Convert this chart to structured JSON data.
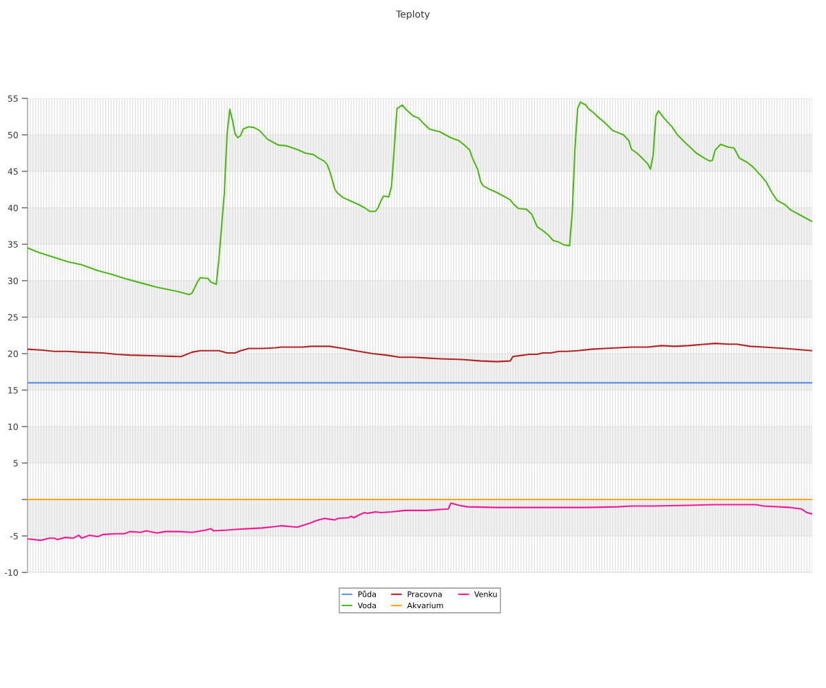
{
  "chart_data": {
    "type": "line",
    "title": "Teploty",
    "categories": [
      null,
      null,
      null,
      null,
      null,
      null,
      null,
      null,
      null,
      null,
      null,
      null,
      null,
      null,
      null,
      null,
      null,
      null,
      null,
      null,
      null,
      null,
      null,
      null,
      null,
      null,
      null,
      null,
      null,
      null,
      null,
      null,
      null,
      null,
      null,
      null,
      null,
      null,
      null,
      null,
      null,
      null,
      null,
      null,
      null,
      null,
      null,
      null,
      null,
      null,
      null,
      null,
      null,
      null,
      null,
      null,
      null,
      null,
      null,
      null,
      null,
      null,
      null,
      null,
      null,
      null,
      null,
      null,
      null,
      null,
      null,
      null,
      null,
      null,
      null,
      null,
      null,
      null,
      null,
      null,
      null,
      null,
      null,
      null,
      null,
      null,
      null,
      null,
      null,
      null,
      null,
      null,
      null,
      null,
      null,
      null,
      null,
      null,
      null,
      null,
      null,
      null,
      null,
      null,
      null,
      null,
      null,
      null,
      null,
      null,
      null,
      null,
      null,
      null,
      null,
      null,
      null,
      null,
      null,
      null,
      null,
      null,
      null,
      null,
      null,
      null,
      null,
      null,
      null,
      null,
      null,
      null,
      null,
      null,
      null,
      null,
      null,
      null,
      null,
      null,
      null,
      null,
      null,
      null,
      null,
      null,
      null,
      null,
      null,
      null,
      null,
      null,
      null,
      null,
      null,
      null,
      null,
      null,
      null,
      null,
      null,
      null,
      null,
      null,
      null,
      null,
      null,
      null,
      null,
      null,
      null,
      null,
      null,
      null,
      null,
      null,
      null,
      null,
      null,
      null,
      null,
      null,
      null,
      null,
      null,
      null,
      null,
      null,
      null,
      null,
      null,
      null,
      null,
      null,
      null,
      null,
      null,
      null,
      null,
      null,
      null,
      null,
      null,
      null,
      null,
      null,
      null,
      null,
      null,
      null,
      null,
      null,
      null,
      null,
      null,
      null,
      null,
      null,
      null,
      null,
      null,
      null,
      null,
      null,
      null,
      null,
      null,
      null,
      null,
      null,
      null,
      null,
      null,
      null,
      null,
      null,
      null,
      null,
      null,
      null,
      null,
      null,
      null,
      null,
      null,
      null,
      null,
      null,
      null,
      null,
      null,
      null,
      null,
      null,
      null,
      null,
      null,
      null,
      null,
      null,
      null,
      null,
      null,
      null,
      null,
      null,
      null,
      null,
      null,
      null,
      null,
      null,
      null,
      null,
      null,
      null,
      null,
      null,
      null,
      null,
      null,
      null,
      null,
      null,
      null,
      null,
      null,
      null,
      null,
      null,
      null,
      null
    ],
    "ylim": [
      -10,
      55
    ],
    "yticks": [
      -10,
      -5,
      {
        "value": 0,
        "label": null
      },
      5,
      10,
      15,
      20,
      25,
      30,
      35,
      40,
      45,
      50,
      55
    ],
    "grid": true,
    "legend": "bottom",
    "marker": "none",
    "line_style": "solid",
    "bands": [
      {
        "axis": "y",
        "from": -5,
        "to": 0,
        "color": "#f2f2f2"
      },
      {
        "axis": "y",
        "from": 5,
        "to": 10,
        "color": "#f2f2f2"
      },
      {
        "axis": "y",
        "from": 15,
        "to": 20,
        "color": "#f2f2f2"
      },
      {
        "axis": "y",
        "from": 25,
        "to": 30,
        "color": "#f2f2f2"
      },
      {
        "axis": "y",
        "from": 35,
        "to": 40,
        "color": "#f2f2f2"
      },
      {
        "axis": "y",
        "from": 45,
        "to": 50,
        "color": "#f2f2f2"
      }
    ],
    "series": [
      {
        "name": "Půda",
        "color": "#5b8fe8",
        "values": [
          16,
          null,
          null,
          null,
          null,
          null,
          null,
          null,
          null,
          null,
          null,
          null,
          null,
          null,
          null,
          null,
          null,
          null,
          null,
          null,
          null,
          null,
          null,
          null,
          null,
          null,
          null,
          null,
          null,
          null,
          null,
          null,
          null,
          null,
          null,
          null,
          null,
          null,
          null,
          null,
          null,
          null,
          null,
          null,
          null,
          null,
          null,
          null,
          null,
          null,
          null,
          null,
          null,
          null,
          null,
          null,
          null,
          null,
          null,
          null,
          null,
          null,
          null,
          null,
          null,
          null,
          null,
          null,
          null,
          null,
          null,
          null,
          null,
          null,
          null,
          null,
          null,
          null,
          null,
          null,
          null,
          null,
          null,
          null,
          null,
          null,
          null,
          null,
          null,
          null,
          null,
          null,
          null,
          null,
          null,
          null,
          null,
          null,
          null,
          null,
          null,
          null,
          null,
          null,
          null,
          null,
          null,
          null,
          null,
          null,
          null,
          null,
          null,
          null,
          null,
          null,
          null,
          null,
          null,
          null,
          null,
          null,
          null,
          null,
          null,
          null,
          null,
          null,
          null,
          null,
          null,
          null,
          null,
          null,
          null,
          null,
          null,
          null,
          null,
          null,
          null,
          null,
          null,
          null,
          null,
          null,
          null,
          null,
          null,
          null,
          null,
          null,
          null,
          null,
          null,
          null,
          null,
          null,
          null,
          null,
          null,
          null,
          null,
          null,
          null,
          null,
          null,
          null,
          null,
          null,
          null,
          null,
          null,
          null,
          null,
          null,
          null,
          null,
          null,
          null,
          null,
          null,
          null,
          null,
          null,
          null,
          null,
          null,
          null,
          null,
          null,
          null,
          null,
          null,
          null,
          null,
          null,
          null,
          null,
          null,
          null,
          null,
          null,
          null,
          null,
          null,
          null,
          null,
          null,
          null,
          null,
          null,
          null,
          null,
          null,
          null,
          null,
          null,
          null,
          null,
          null,
          null,
          null,
          null,
          null,
          null,
          null,
          null,
          null,
          null,
          null,
          null,
          null,
          null,
          null,
          null,
          null,
          null,
          null,
          null,
          null,
          null,
          null,
          null,
          null,
          null,
          null,
          null,
          null,
          null,
          null,
          null,
          null,
          null,
          null,
          null,
          null,
          null,
          null,
          null,
          null,
          null,
          null,
          null,
          null,
          null,
          null,
          null,
          null,
          null,
          null,
          null,
          null,
          null,
          null,
          null,
          null,
          null,
          null,
          null,
          null,
          null,
          null,
          null,
          null,
          null,
          null,
          null,
          null,
          null,
          null,
          16
        ]
      },
      {
        "name": "Voda",
        "color": "#4cb814",
        "values": [
          34.5,
          null,
          null,
          null,
          33.9,
          null,
          null,
          null,
          null,
          33.3,
          null,
          null,
          null,
          null,
          null,
          32.6,
          null,
          null,
          null,
          null,
          32.2,
          null,
          null,
          null,
          null,
          null,
          31.4,
          null,
          null,
          null,
          null,
          30.9,
          null,
          null,
          null,
          null,
          30.3,
          null,
          null,
          null,
          null,
          29.8,
          null,
          null,
          null,
          null,
          null,
          null,
          29.1,
          null,
          null,
          null,
          null,
          null,
          null,
          null,
          28.5,
          null,
          null,
          null,
          28.1,
          28.3,
          null,
          29.8,
          30.4,
          null,
          null,
          30.3,
          29.8,
          null,
          29.5,
          33.1,
          null,
          42.1,
          50.1,
          53.5,
          52.0,
          50.1,
          49.6,
          49.9,
          50.8,
          null,
          51.1,
          null,
          51.0,
          null,
          50.6,
          null,
          49.8,
          49.4,
          null,
          null,
          48.8,
          48.6,
          null,
          null,
          48.5,
          null,
          null,
          null,
          48.0,
          null,
          null,
          47.5,
          null,
          null,
          47.3,
          null,
          46.8,
          null,
          46.4,
          46.0,
          45.1,
          43.8,
          42.5,
          42.0,
          null,
          41.4,
          null,
          null,
          40.9,
          null,
          null,
          40.4,
          null,
          40.0,
          null,
          39.5,
          null,
          39.5,
          40.0,
          40.9,
          41.6,
          null,
          41.5,
          43.0,
          48.2,
          53.6,
          null,
          54.1,
          53.6,
          null,
          null,
          52.6,
          null,
          52.3,
          null,
          51.5,
          null,
          50.8,
          null,
          null,
          null,
          50.4,
          null,
          null,
          null,
          49.6,
          null,
          null,
          49.2,
          null,
          48.6,
          null,
          47.9,
          46.8,
          null,
          45.2,
          43.6,
          43.0,
          null,
          42.6,
          null,
          null,
          42.1,
          null,
          null,
          null,
          null,
          41.1,
          40.6,
          null,
          39.9,
          null,
          null,
          39.8,
          null,
          39.1,
          null,
          37.4,
          null,
          36.9,
          null,
          36.3,
          null,
          35.5,
          null,
          35.3,
          null,
          34.9,
          null,
          34.8,
          39.3,
          48.1,
          53.6,
          54.5,
          null,
          54.1,
          53.6,
          null,
          53.0,
          null,
          52.3,
          null,
          51.7,
          null,
          null,
          50.6,
          null,
          null,
          null,
          50.0,
          null,
          49.2,
          48.0,
          null,
          47.5,
          null,
          46.8,
          null,
          46.0,
          45.3,
          47.2,
          52.6,
          53.3,
          null,
          52.3,
          null,
          null,
          51.1,
          null,
          50.0,
          null,
          null,
          48.9,
          null,
          48.2,
          null,
          47.5,
          null,
          null,
          46.8,
          null,
          46.4,
          46.5,
          47.9,
          null,
          48.7,
          null,
          null,
          48.3,
          null,
          48.2,
          null,
          46.8,
          null,
          null,
          46.2,
          null,
          45.6,
          null,
          null,
          44.4,
          null,
          43.5,
          null,
          42.1,
          null,
          41.0,
          null,
          null,
          40.4,
          null,
          39.7,
          null,
          null,
          39.1,
          null,
          38.7,
          null,
          null,
          38.1
        ]
      },
      {
        "name": "Pracovna",
        "color": "#b22222",
        "values": [
          20.6,
          null,
          null,
          null,
          null,
          20.5,
          null,
          null,
          null,
          null,
          20.3,
          null,
          null,
          null,
          null,
          20.3,
          null,
          null,
          null,
          null,
          20.2,
          null,
          null,
          null,
          null,
          null,
          null,
          null,
          20.1,
          null,
          null,
          null,
          null,
          19.9,
          null,
          null,
          null,
          null,
          19.8,
          null,
          null,
          null,
          null,
          null,
          null,
          null,
          null,
          null,
          19.7,
          null,
          null,
          null,
          null,
          null,
          null,
          null,
          19.6,
          19.6,
          null,
          null,
          null,
          20.2,
          null,
          null,
          20.4,
          null,
          null,
          null,
          null,
          null,
          null,
          20.4,
          null,
          null,
          20.1,
          null,
          null,
          20.1,
          null,
          20.4,
          null,
          null,
          20.7,
          null,
          null,
          null,
          null,
          20.7,
          null,
          null,
          null,
          null,
          20.8,
          null,
          20.9,
          null,
          null,
          null,
          null,
          null,
          null,
          null,
          20.9,
          null,
          null,
          21.0,
          null,
          null,
          null,
          null,
          null,
          null,
          21.0,
          null,
          null,
          null,
          null,
          20.7,
          null,
          null,
          null,
          null,
          null,
          20.3,
          null,
          null,
          null,
          null,
          20.0,
          null,
          null,
          null,
          null,
          19.8,
          null,
          null,
          null,
          null,
          19.5,
          null,
          null,
          null,
          null,
          19.5,
          null,
          null,
          null,
          null,
          19.4,
          null,
          null,
          null,
          null,
          19.3,
          null,
          null,
          null,
          null,
          null,
          null,
          null,
          19.2,
          null,
          null,
          null,
          null,
          null,
          null,
          19.0,
          null,
          null,
          null,
          null,
          null,
          18.9,
          null,
          null,
          null,
          null,
          19.0,
          19.6,
          null,
          null,
          null,
          19.8,
          null,
          19.9,
          null,
          null,
          19.9,
          null,
          20.1,
          null,
          null,
          20.1,
          null,
          null,
          20.3,
          null,
          null,
          20.3,
          null,
          null,
          null,
          20.4,
          null,
          null,
          null,
          null,
          20.6,
          null,
          null,
          null,
          null,
          20.7,
          null,
          null,
          null,
          null,
          20.8,
          null,
          null,
          null,
          null,
          20.9,
          null,
          null,
          null,
          null,
          null,
          20.9,
          null,
          null,
          null,
          null,
          21.1,
          null,
          null,
          null,
          null,
          21.0,
          null,
          null,
          null,
          null,
          21.1,
          null,
          null,
          null,
          null,
          null,
          null,
          null,
          null,
          null,
          21.4,
          null,
          null,
          null,
          null,
          21.3,
          null,
          null,
          21.3,
          null,
          null,
          null,
          null,
          21.0,
          null,
          null,
          null,
          null,
          20.9,
          null,
          null,
          null,
          null,
          null,
          null,
          null,
          20.7,
          null,
          null,
          null,
          null,
          null,
          null,
          20.5,
          null,
          null,
          20.4
        ]
      },
      {
        "name": "Akvarium",
        "color": "#ffa500",
        "values": [
          0,
          null,
          null,
          null,
          null,
          null,
          null,
          null,
          null,
          null,
          null,
          null,
          null,
          null,
          null,
          null,
          null,
          null,
          null,
          null,
          null,
          null,
          null,
          null,
          null,
          null,
          null,
          null,
          null,
          null,
          null,
          null,
          null,
          null,
          null,
          null,
          null,
          null,
          null,
          null,
          null,
          null,
          null,
          null,
          null,
          null,
          null,
          null,
          null,
          null,
          null,
          null,
          null,
          null,
          null,
          null,
          null,
          null,
          null,
          null,
          null,
          null,
          null,
          null,
          null,
          null,
          null,
          null,
          null,
          null,
          null,
          null,
          null,
          null,
          null,
          null,
          null,
          null,
          null,
          null,
          null,
          null,
          null,
          null,
          null,
          null,
          null,
          null,
          null,
          null,
          null,
          null,
          null,
          null,
          null,
          null,
          null,
          null,
          null,
          null,
          null,
          null,
          null,
          null,
          null,
          null,
          null,
          null,
          null,
          null,
          null,
          null,
          null,
          null,
          null,
          null,
          null,
          null,
          null,
          null,
          null,
          null,
          null,
          null,
          null,
          null,
          null,
          null,
          null,
          null,
          null,
          null,
          null,
          null,
          null,
          null,
          null,
          null,
          null,
          null,
          null,
          null,
          null,
          null,
          null,
          null,
          null,
          null,
          null,
          null,
          null,
          null,
          null,
          null,
          null,
          null,
          null,
          null,
          null,
          null,
          null,
          null,
          null,
          null,
          null,
          null,
          null,
          null,
          null,
          null,
          null,
          null,
          null,
          null,
          null,
          null,
          null,
          null,
          null,
          null,
          null,
          null,
          null,
          null,
          null,
          null,
          null,
          null,
          null,
          null,
          null,
          null,
          null,
          null,
          null,
          null,
          null,
          null,
          null,
          null,
          null,
          null,
          null,
          null,
          null,
          null,
          null,
          null,
          null,
          null,
          null,
          null,
          null,
          null,
          null,
          null,
          null,
          null,
          null,
          null,
          null,
          null,
          null,
          null,
          null,
          null,
          null,
          null,
          null,
          null,
          null,
          null,
          null,
          null,
          null,
          null,
          null,
          null,
          null,
          null,
          null,
          null,
          null,
          null,
          null,
          null,
          null,
          null,
          null,
          null,
          null,
          null,
          null,
          null,
          null,
          null,
          null,
          null,
          null,
          null,
          null,
          null,
          null,
          null,
          null,
          null,
          null,
          null,
          null,
          null,
          null,
          null,
          null,
          null,
          null,
          null,
          null,
          null,
          null,
          null,
          null,
          null,
          null,
          null,
          null,
          null,
          null,
          null,
          null,
          null,
          null,
          0
        ]
      },
      {
        "name": "Venku",
        "color": "#ff1493",
        "values": [
          -5.4,
          null,
          null,
          null,
          null,
          -5.6,
          null,
          null,
          -5.3,
          null,
          -5.3,
          -5.5,
          null,
          null,
          -5.2,
          null,
          null,
          -5.3,
          null,
          -4.9,
          -5.3,
          null,
          null,
          -4.9,
          null,
          null,
          -5.1,
          null,
          -4.8,
          null,
          null,
          null,
          null,
          -4.7,
          null,
          null,
          -4.7,
          null,
          -4.4,
          null,
          null,
          null,
          -4.5,
          null,
          -4.3,
          null,
          null,
          null,
          -4.6,
          null,
          null,
          -4.4,
          null,
          null,
          null,
          null,
          -4.4,
          null,
          null,
          null,
          null,
          -4.5,
          null,
          null,
          null,
          null,
          -4.2,
          null,
          -4.0,
          -4.3,
          null,
          null,
          null,
          null,
          -4.2,
          null,
          null,
          -4.1,
          null,
          null,
          null,
          null,
          -4.0,
          null,
          null,
          null,
          null,
          -3.9,
          null,
          null,
          null,
          null,
          -3.7,
          null,
          -3.6,
          null,
          null,
          null,
          null,
          null,
          -3.8,
          null,
          null,
          null,
          null,
          -3.2,
          null,
          -2.9,
          null,
          null,
          -2.6,
          null,
          -2.7,
          null,
          -2.8,
          -2.6,
          null,
          null,
          null,
          -2.5,
          -2.3,
          -2.5,
          null,
          -2.1,
          null,
          -1.8,
          -1.9,
          null,
          null,
          -1.7,
          null,
          -1.8,
          null,
          null,
          null,
          -1.7,
          null,
          null,
          null,
          null,
          -1.5,
          null,
          null,
          null,
          null,
          null,
          null,
          null,
          -1.5,
          null,
          null,
          null,
          null,
          null,
          null,
          null,
          -1.3,
          -0.5,
          null,
          null,
          -0.8,
          null,
          null,
          -1.0,
          null,
          null,
          null,
          null,
          null,
          null,
          null,
          null,
          null,
          null,
          -1.1,
          null,
          null,
          null,
          null,
          null,
          null,
          null,
          null,
          null,
          null,
          null,
          null,
          null,
          null,
          null,
          null,
          null,
          null,
          null,
          -1.1,
          null,
          null,
          null,
          null,
          null,
          null,
          null,
          null,
          null,
          null,
          null,
          null,
          -1.1,
          null,
          null,
          null,
          null,
          null,
          null,
          null,
          null,
          null,
          null,
          null,
          -1.0,
          null,
          null,
          null,
          null,
          -0.9,
          null,
          null,
          null,
          null,
          null,
          null,
          null,
          -0.9,
          null,
          null,
          null,
          null,
          null,
          null,
          null,
          null,
          null,
          null,
          null,
          null,
          -0.8,
          null,
          null,
          null,
          null,
          null,
          null,
          null,
          null,
          null,
          -0.7,
          null,
          null,
          null,
          null,
          null,
          null,
          null,
          null,
          null,
          null,
          null,
          null,
          null,
          null,
          -0.7,
          null,
          null,
          -0.9,
          null,
          null,
          null,
          null,
          null,
          null,
          null,
          null,
          null,
          -1.1,
          null,
          null,
          null,
          -1.3,
          null,
          -1.8,
          null,
          -2.0
        ]
      }
    ]
  }
}
